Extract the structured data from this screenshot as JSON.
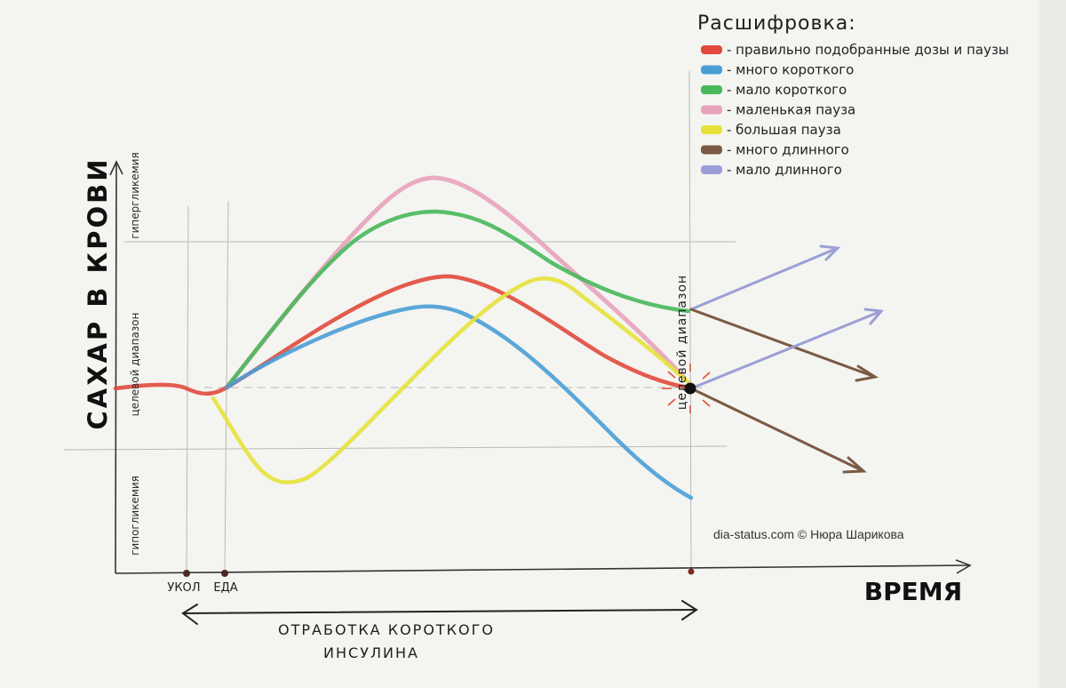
{
  "legend": {
    "title": "Расшифровка:",
    "items": [
      {
        "color": "#e14a3c",
        "label": "- правильно подобранные дозы и паузы"
      },
      {
        "color": "#4a9ed6",
        "label": "- много короткого"
      },
      {
        "color": "#48b85a",
        "label": "- мало короткого"
      },
      {
        "color": "#e8a2bc",
        "label": "- маленькая пауза"
      },
      {
        "color": "#e6e23a",
        "label": "- большая пауза"
      },
      {
        "color": "#7a5a44",
        "label": "- много длинного"
      },
      {
        "color": "#9b9fd6",
        "label": "- мало длинного"
      }
    ]
  },
  "axes": {
    "y_label": "САХАР В КРОВИ",
    "x_label": "ВРЕМЯ"
  },
  "zones": {
    "hyper": "гипергликемия",
    "target": "целевой диапазон",
    "hypo": "гипогликемия"
  },
  "x_marks": {
    "injection": "УКОЛ",
    "meal": "ЕДА"
  },
  "target_point_label": "целевой диапазон",
  "period": {
    "line1": "ОТРАБОТКА КОРОТКОГО",
    "line2": "ИНСУЛИНА"
  },
  "credit": "dia-status.com © Нюра Шарикова"
}
